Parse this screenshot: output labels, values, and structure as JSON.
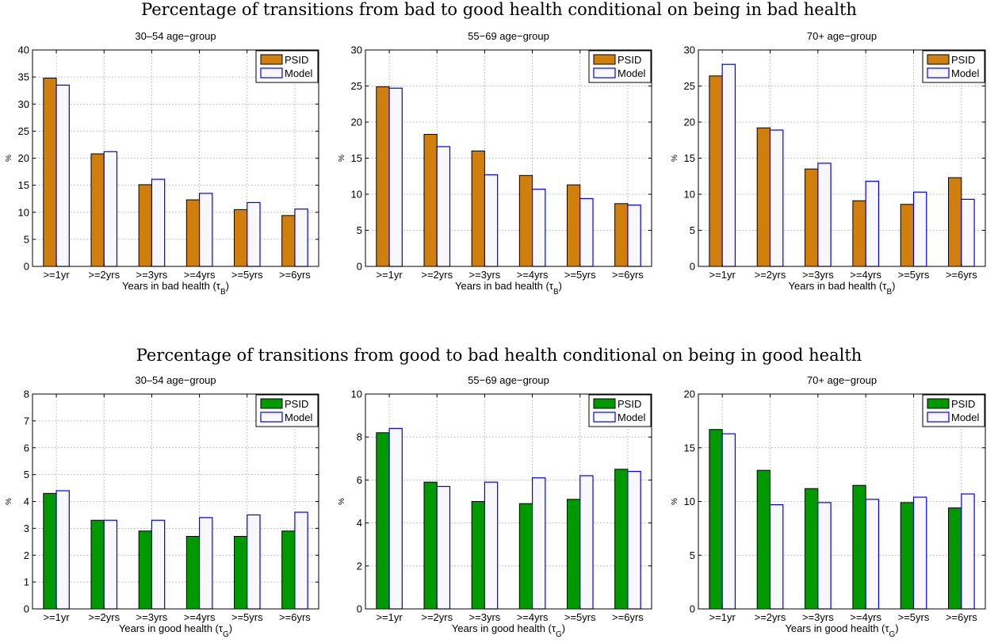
{
  "top_section_title": "Percentage of transitions from bad to good health conditional on being in bad health",
  "bottom_section_title": "Percentage of transitions from good to bad health conditional on being in good health",
  "colors": {
    "psid_bad": "#d17f0c",
    "psid_good": "#009a00",
    "model_fill": "#f7f7fc",
    "model_stroke": "#0000ee"
  },
  "chart_data": [
    {
      "type": "bar",
      "title": "30–54 age−group",
      "xlabel": "Years in bad health (τB)",
      "xlabel_main": "Years in bad health (τ",
      "xlabel_sub": "B",
      "xlabel_close": ")",
      "ylabel": "%",
      "categories": [
        ">=1yr",
        ">=2yrs",
        ">=3yrs",
        ">=4yrs",
        ">=5yrs",
        ">=6yrs"
      ],
      "ylim": [
        0,
        40
      ],
      "yticks": [
        0,
        5,
        10,
        15,
        20,
        25,
        30,
        35,
        40
      ],
      "grid": true,
      "legend_position": "top-right",
      "series": [
        {
          "name": "PSID",
          "values": [
            34.8,
            20.8,
            15.1,
            12.3,
            10.5,
            9.4
          ]
        },
        {
          "name": "Model",
          "values": [
            33.5,
            21.2,
            16.1,
            13.5,
            11.8,
            10.6
          ]
        }
      ]
    },
    {
      "type": "bar",
      "title": "55−69 age−group",
      "xlabel": "Years in bad health (τB)",
      "xlabel_main": "Years in bad health (τ",
      "xlabel_sub": "B",
      "xlabel_close": ")",
      "ylabel": "%",
      "categories": [
        ">=1yr",
        ">=2yrs",
        ">=3yrs",
        ">=4yrs",
        ">=5yrs",
        ">=6yrs"
      ],
      "ylim": [
        0,
        30
      ],
      "yticks": [
        0,
        5,
        10,
        15,
        20,
        25,
        30
      ],
      "grid": true,
      "legend_position": "top-right",
      "series": [
        {
          "name": "PSID",
          "values": [
            24.9,
            18.3,
            16.0,
            12.6,
            11.3,
            8.7
          ]
        },
        {
          "name": "Model",
          "values": [
            24.7,
            16.6,
            12.7,
            10.7,
            9.4,
            8.5
          ]
        }
      ]
    },
    {
      "type": "bar",
      "title": "70+ age−group",
      "xlabel": "Years in bad health (τB)",
      "xlabel_main": "Years in bad health (τ",
      "xlabel_sub": "B",
      "xlabel_close": ")",
      "ylabel": "%",
      "categories": [
        ">=1yr",
        ">=2yrs",
        ">=3yrs",
        ">=4yrs",
        ">=5yrs",
        ">=6yrs"
      ],
      "ylim": [
        0,
        30
      ],
      "yticks": [
        0,
        5,
        10,
        15,
        20,
        25,
        30
      ],
      "grid": true,
      "legend_position": "top-right",
      "series": [
        {
          "name": "PSID",
          "values": [
            26.4,
            19.2,
            13.5,
            9.1,
            8.6,
            12.3
          ]
        },
        {
          "name": "Model",
          "values": [
            28.0,
            18.9,
            14.3,
            11.8,
            10.3,
            9.3
          ]
        }
      ]
    },
    {
      "type": "bar",
      "title": "30–54 age−group",
      "xlabel": "Years in good health (τG)",
      "xlabel_main": "Years in good health (τ",
      "xlabel_sub": "G",
      "xlabel_close": ")",
      "ylabel": "%",
      "categories": [
        ">=1yr",
        ">=2yrs",
        ">=3yrs",
        ">=4yrs",
        ">=5yrs",
        ">=6yrs"
      ],
      "ylim": [
        0,
        8
      ],
      "yticks": [
        0,
        1,
        2,
        3,
        4,
        5,
        6,
        7,
        8
      ],
      "grid": true,
      "legend_position": "top-right",
      "series": [
        {
          "name": "PSID",
          "values": [
            4.3,
            3.3,
            2.9,
            2.7,
            2.7,
            2.9
          ]
        },
        {
          "name": "Model",
          "values": [
            4.4,
            3.3,
            3.3,
            3.4,
            3.5,
            3.6
          ]
        }
      ]
    },
    {
      "type": "bar",
      "title": "55−69 age−group",
      "xlabel": "Years in good health (τG)",
      "xlabel_main": "Years in good health (τ",
      "xlabel_sub": "G",
      "xlabel_close": ")",
      "ylabel": "%",
      "categories": [
        ">=1yr",
        ">=2yrs",
        ">=3yrs",
        ">=4yrs",
        ">=5yrs",
        ">=6yrs"
      ],
      "ylim": [
        0,
        10
      ],
      "yticks": [
        0,
        2,
        4,
        6,
        8,
        10
      ],
      "grid": true,
      "legend_position": "top-right",
      "series": [
        {
          "name": "PSID",
          "values": [
            8.2,
            5.9,
            5.0,
            4.9,
            5.1,
            6.5
          ]
        },
        {
          "name": "Model",
          "values": [
            8.4,
            5.7,
            5.9,
            6.1,
            6.2,
            6.4
          ]
        }
      ]
    },
    {
      "type": "bar",
      "title": "70+ age−group",
      "xlabel": "Years in good health (τG)",
      "xlabel_main": "Years in good health (τ",
      "xlabel_sub": "G",
      "xlabel_close": ")",
      "ylabel": "%",
      "categories": [
        ">=1yr",
        ">=2yrs",
        ">=3yrs",
        ">=4yrs",
        ">=5yrs",
        ">=6yrs"
      ],
      "ylim": [
        0,
        20
      ],
      "yticks": [
        0,
        5,
        10,
        15,
        20
      ],
      "grid": true,
      "legend_position": "top-right",
      "series": [
        {
          "name": "PSID",
          "values": [
            16.7,
            12.9,
            11.2,
            11.5,
            9.9,
            9.4
          ]
        },
        {
          "name": "Model",
          "values": [
            16.3,
            9.7,
            9.9,
            10.2,
            10.4,
            10.7
          ]
        }
      ]
    }
  ]
}
